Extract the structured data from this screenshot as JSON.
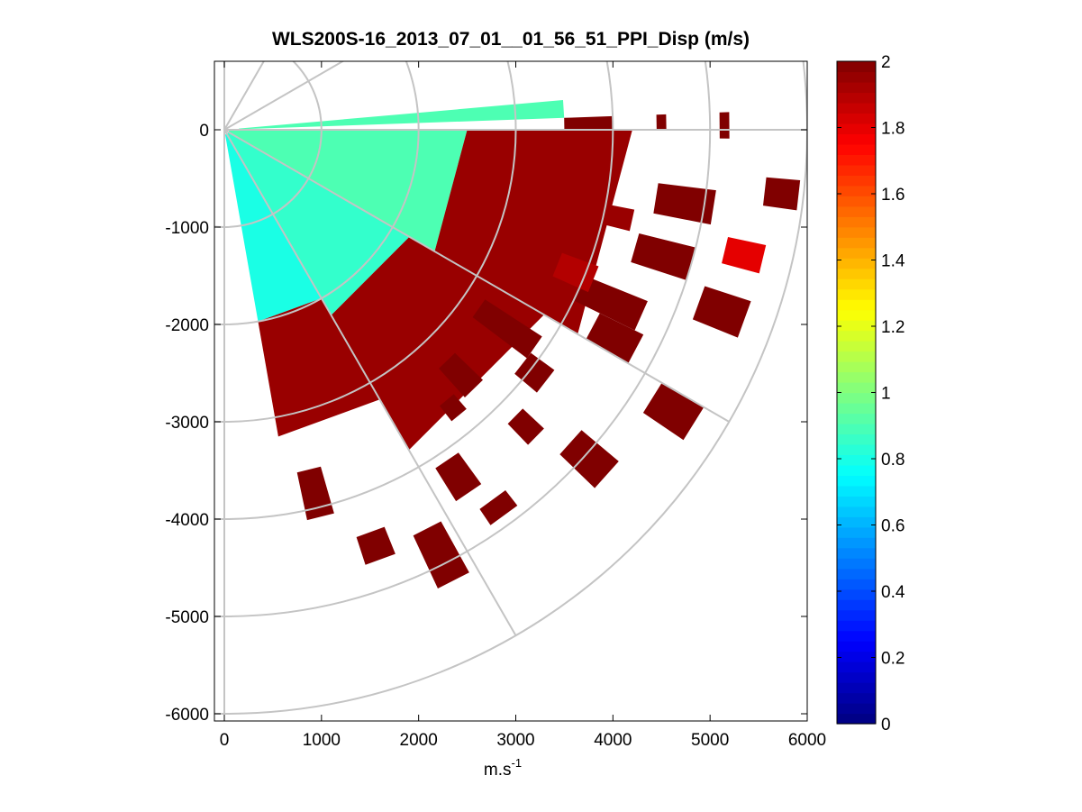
{
  "chart_data": {
    "type": "heatmap",
    "subtype": "polar-ppi-scan",
    "title": "WLS200S-16_2013_07_01__01_56_51_PPI_Disp (m/s)",
    "xlabel": {
      "base": "m.s",
      "sup": "-1"
    },
    "ylabel": "",
    "xlim": [
      -50,
      6000
    ],
    "ylim": [
      -6100,
      650
    ],
    "xticks": [
      0,
      1000,
      2000,
      3000,
      4000,
      5000,
      6000
    ],
    "xtick_labels": [
      "0",
      "1000",
      "2000",
      "3000",
      "4000",
      "5000",
      "6000"
    ],
    "yticks": [
      0,
      -1000,
      -2000,
      -3000,
      -4000,
      -5000,
      -6000
    ],
    "ytick_labels": [
      "0",
      "-1000",
      "-2000",
      "-3000",
      "-4000",
      "-5000",
      "-6000"
    ],
    "colorbar": {
      "colormap": "jet",
      "range": [
        0,
        2
      ],
      "ticks": [
        0,
        0.2,
        0.4,
        0.6,
        0.8,
        1,
        1.2,
        1.4,
        1.6,
        1.8,
        2
      ],
      "tick_labels": [
        "0",
        "0.2",
        "0.4",
        "0.6",
        "0.8",
        "1",
        "1.2",
        "1.4",
        "1.6",
        "1.8",
        "2"
      ]
    },
    "polar_grid": {
      "ring_radii": [
        1000,
        2000,
        3000,
        4000,
        5000,
        6000
      ],
      "spoke_angles_deg": [
        0,
        -30,
        -60,
        -90,
        30,
        60,
        90
      ]
    },
    "scan": {
      "origin": [
        0,
        0
      ],
      "azimuth_range_deg": [
        -80,
        5
      ],
      "range_max": 6200
    },
    "sectors": [
      {
        "a0": 2,
        "a1": 5,
        "r0": 150,
        "r1": 3500,
        "value": 0.9
      },
      {
        "a0": -80,
        "a1": -60,
        "r0": 50,
        "r1": 2000,
        "value": 0.8
      },
      {
        "a0": -60,
        "a1": -30,
        "r0": 50,
        "r1": 2200,
        "value": 0.85
      },
      {
        "a0": -30,
        "a1": 0,
        "r0": 50,
        "r1": 2500,
        "value": 0.9
      },
      {
        "a0": -80,
        "a1": -60,
        "r0": 2000,
        "r1": 3200,
        "value": 1.95
      },
      {
        "a0": -60,
        "a1": -30,
        "r0": 2200,
        "r1": 3800,
        "value": 1.95
      },
      {
        "a0": -30,
        "a1": 0,
        "r0": 2500,
        "r1": 4200,
        "value": 1.95
      },
      {
        "a0": 0,
        "a1": 2,
        "r0": 3500,
        "r1": 4000,
        "value": 2.0
      },
      {
        "a0": -78,
        "a1": -74,
        "r0": 3600,
        "r1": 4100,
        "value": 2.0
      },
      {
        "a0": -72,
        "a1": -68,
        "r0": 4400,
        "r1": 4700,
        "value": 2.0
      },
      {
        "a0": -65,
        "a1": -61,
        "r0": 4600,
        "r1": 5200,
        "value": 2.0
      },
      {
        "a0": -58,
        "a1": -54,
        "r0": 4100,
        "r1": 4500,
        "value": 2.0
      },
      {
        "a0": -56,
        "a1": -52,
        "r0": 4700,
        "r1": 4900,
        "value": 2.0
      },
      {
        "a0": -46,
        "a1": -43,
        "r0": 4200,
        "r1": 4500,
        "value": 2.0
      },
      {
        "a0": -44,
        "a1": -40,
        "r0": 4800,
        "r1": 5300,
        "value": 2.0
      },
      {
        "a0": -40,
        "a1": -36,
        "r0": 3900,
        "r1": 4200,
        "value": 2.0
      },
      {
        "a0": -37,
        "a1": -33,
        "r0": 3200,
        "r1": 3900,
        "value": 2.0
      },
      {
        "a0": -34,
        "a1": -30,
        "r0": 5200,
        "r1": 5700,
        "value": 2.0
      },
      {
        "a0": -30,
        "a1": -26,
        "r0": 4300,
        "r1": 4800,
        "value": 2.0
      },
      {
        "a0": -26,
        "a1": -22,
        "r0": 4000,
        "r1": 4700,
        "value": 2.0
      },
      {
        "a0": -22,
        "a1": -18,
        "r0": 5200,
        "r1": 5700,
        "value": 2.0
      },
      {
        "a0": -18,
        "a1": -14,
        "r0": 4400,
        "r1": 5000,
        "value": 2.0
      },
      {
        "a0": -15,
        "a1": -12,
        "r0": 5300,
        "r1": 5700,
        "value": 1.8
      },
      {
        "a0": -11,
        "a1": -7,
        "r0": 4500,
        "r1": 5100,
        "value": 2.0
      },
      {
        "a0": -8,
        "a1": -5,
        "r0": 5600,
        "r1": 5950,
        "value": 2.0
      },
      {
        "a0": 0,
        "a1": 2,
        "r0": 4450,
        "r1": 4550,
        "value": 2.0
      },
      {
        "a0": -1,
        "a1": 2,
        "r0": 5100,
        "r1": 5200,
        "value": 2.0
      },
      {
        "a0": -52,
        "a1": -49,
        "r0": 3600,
        "r1": 3800,
        "value": 2.0
      },
      {
        "a0": -48,
        "a1": -44,
        "r0": 3300,
        "r1": 3700,
        "value": 2.0
      },
      {
        "a0": -24,
        "a1": -20,
        "r0": 3700,
        "r1": 4100,
        "value": 1.9
      },
      {
        "a0": -14,
        "a1": -11,
        "r0": 3900,
        "r1": 4300,
        "value": 1.95
      }
    ]
  }
}
